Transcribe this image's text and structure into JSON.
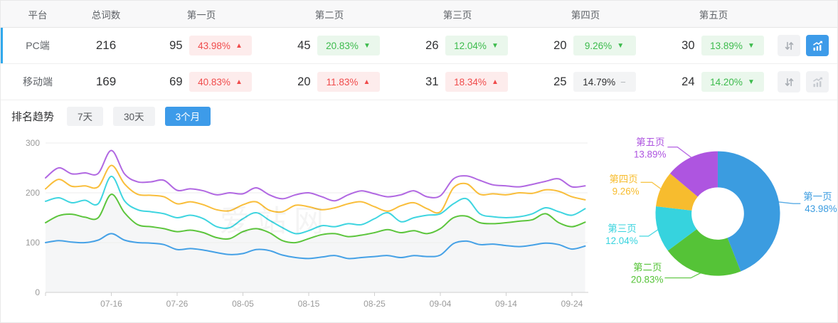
{
  "table": {
    "headers": [
      "平台",
      "总词数",
      "第一页",
      "第二页",
      "第三页",
      "第四页",
      "第五页"
    ],
    "rows": [
      {
        "platform": "PC端",
        "total": "216",
        "selected": true,
        "pages": [
          {
            "count": "95",
            "pct": "43.98%",
            "dir": "up"
          },
          {
            "count": "45",
            "pct": "20.83%",
            "dir": "down"
          },
          {
            "count": "26",
            "pct": "12.04%",
            "dir": "down"
          },
          {
            "count": "20",
            "pct": "9.26%",
            "dir": "down"
          },
          {
            "count": "30",
            "pct": "13.89%",
            "dir": "down"
          }
        ],
        "actions": {
          "sort_active": false,
          "trend_active": true
        }
      },
      {
        "platform": "移动端",
        "total": "169",
        "selected": false,
        "pages": [
          {
            "count": "69",
            "pct": "40.83%",
            "dir": "up"
          },
          {
            "count": "20",
            "pct": "11.83%",
            "dir": "up"
          },
          {
            "count": "31",
            "pct": "18.34%",
            "dir": "up"
          },
          {
            "count": "25",
            "pct": "14.79%",
            "dir": "flat"
          },
          {
            "count": "24",
            "pct": "14.20%",
            "dir": "down"
          }
        ],
        "actions": {
          "sort_active": false,
          "trend_active": false
        }
      }
    ]
  },
  "trend": {
    "label": "排名趋势",
    "tabs": [
      {
        "label": "7天",
        "active": false
      },
      {
        "label": "30天",
        "active": false
      },
      {
        "label": "3个月",
        "active": true
      }
    ]
  },
  "watermark": "爱站网",
  "colors": {
    "accent": "#3D9BE9",
    "rise": "#F04B4B",
    "rise_bg": "#FDECEC",
    "fall": "#3CBB4C",
    "fall_bg": "#EAF7EC",
    "flat_bg": "#F3F4F5",
    "selected_indicator": "#2FA8EC"
  },
  "chart_data": [
    {
      "type": "line",
      "title": "排名趋势 (3个月)",
      "x_tick_labels": [
        "07-16",
        "07-26",
        "08-05",
        "08-15",
        "08-25",
        "09-04",
        "09-14",
        "09-24"
      ],
      "point_interval_days": 2,
      "ylim": [
        0,
        300
      ],
      "y_ticks": [
        0,
        100,
        200,
        300
      ],
      "grid": true,
      "legend_position": "none",
      "area_fill_under": "第二页",
      "area_fill_color": "#f5f6f7",
      "series": [
        {
          "name": "第一页",
          "color": "#45A1E6",
          "values": [
            100,
            104,
            101,
            100,
            105,
            118,
            105,
            100,
            99,
            96,
            86,
            88,
            85,
            80,
            76,
            78,
            86,
            84,
            75,
            70,
            68,
            71,
            74,
            68,
            70,
            72,
            74,
            70,
            74,
            72,
            75,
            98,
            103,
            96,
            97,
            94,
            92,
            95,
            99,
            96,
            87,
            93
          ]
        },
        {
          "name": "第二页",
          "color": "#5CC53C",
          "values": [
            140,
            154,
            157,
            151,
            150,
            197,
            160,
            136,
            132,
            128,
            122,
            125,
            120,
            110,
            108,
            122,
            128,
            120,
            104,
            100,
            108,
            116,
            118,
            112,
            115,
            120,
            126,
            120,
            124,
            118,
            128,
            150,
            153,
            140,
            138,
            140,
            143,
            146,
            158,
            140,
            132,
            141
          ]
        },
        {
          "name": "第三页",
          "color": "#3FD5E0",
          "values": [
            183,
            190,
            180,
            185,
            178,
            233,
            184,
            166,
            162,
            158,
            150,
            155,
            148,
            132,
            130,
            148,
            160,
            145,
            130,
            118,
            124,
            134,
            132,
            138,
            136,
            148,
            160,
            142,
            150,
            155,
            158,
            178,
            188,
            158,
            152,
            150,
            152,
            158,
            170,
            162,
            155,
            168
          ]
        },
        {
          "name": "第四页",
          "color": "#F9BE3B",
          "values": [
            208,
            227,
            213,
            214,
            212,
            255,
            218,
            197,
            195,
            192,
            178,
            182,
            176,
            166,
            164,
            176,
            182,
            165,
            162,
            175,
            172,
            166,
            170,
            178,
            182,
            172,
            163,
            174,
            180,
            168,
            162,
            210,
            218,
            197,
            198,
            196,
            200,
            199,
            206,
            203,
            192,
            186
          ]
        },
        {
          "name": "第五页",
          "color": "#B168E2",
          "values": [
            230,
            250,
            238,
            240,
            239,
            285,
            238,
            222,
            222,
            225,
            205,
            208,
            204,
            196,
            200,
            198,
            210,
            196,
            188,
            196,
            200,
            192,
            184,
            196,
            204,
            198,
            192,
            196,
            204,
            192,
            194,
            228,
            234,
            225,
            216,
            214,
            212,
            217,
            223,
            228,
            212,
            214
          ]
        }
      ]
    },
    {
      "type": "donut",
      "label_style": "outside-leader-lines",
      "slices": [
        {
          "label": "第一页",
          "pct_label": "43.98%",
          "value": 43.98,
          "color": "#3B9CE0"
        },
        {
          "label": "第二页",
          "pct_label": "20.83%",
          "value": 20.83,
          "color": "#55C337"
        },
        {
          "label": "第三页",
          "pct_label": "12.04%",
          "value": 12.04,
          "color": "#36D3DE"
        },
        {
          "label": "第四页",
          "pct_label": "9.26%",
          "value": 9.26,
          "color": "#F7BC2E"
        },
        {
          "label": "第五页",
          "pct_label": "13.89%",
          "value": 13.89,
          "color": "#AE55E0"
        }
      ]
    }
  ]
}
